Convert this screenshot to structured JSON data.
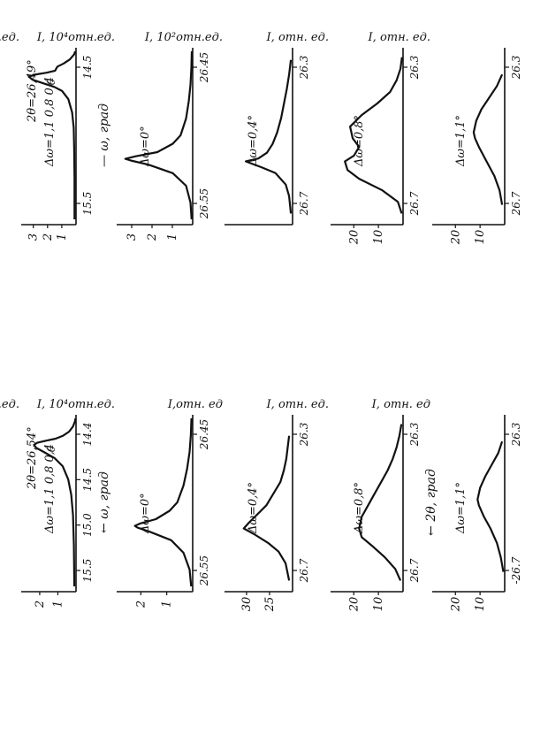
{
  "chart_data": [
    {
      "type": "line",
      "id": "p1",
      "ylabel": "I, 10⁴отн.ед.",
      "xlabel": "— ω, град",
      "annotation": "2θ=26,49°",
      "dw_label": "Δω=1,1 0,8 0,4",
      "zero_marker": "0",
      "x_ticks": [
        "15.5",
        "14.5"
      ],
      "y_ticks": [
        "3",
        "2",
        "1"
      ],
      "xlim": [
        15.9,
        14.25
      ],
      "ylim": [
        0,
        3.2
      ],
      "series": [
        {
          "x": [
            15.9,
            15.5,
            15.2,
            15.0,
            14.85,
            14.72,
            14.64,
            14.6,
            14.56,
            14.53,
            14.5,
            14.48,
            14.46,
            14.44,
            14.42,
            14.4,
            14.37,
            14.33,
            14.28,
            14.25
          ],
          "y": [
            0.1,
            0.1,
            0.12,
            0.15,
            0.25,
            0.5,
            0.9,
            1.4,
            2.2,
            2.8,
            3.05,
            2.7,
            1.9,
            1.35,
            1.28,
            1.2,
            0.8,
            0.4,
            0.12,
            0.05
          ]
        }
      ]
    },
    {
      "type": "line",
      "id": "p2",
      "ylabel": "I, 10⁴отн.ед.",
      "dw_label": "Δω=0°",
      "x_ticks": [
        "26.55",
        "26.45"
      ],
      "y_ticks": [
        "3",
        "2",
        "1"
      ],
      "xlim": [
        26.62,
        26.42
      ],
      "ylim": [
        0,
        3.2
      ],
      "series": [
        {
          "x": [
            26.62,
            26.6,
            26.58,
            26.565,
            26.555,
            26.55,
            26.548,
            26.545,
            26.54,
            26.53,
            26.52,
            26.5,
            26.48,
            26.46,
            26.44,
            26.42
          ],
          "y": [
            0.05,
            0.1,
            0.3,
            0.9,
            2.0,
            2.8,
            3.05,
            2.6,
            1.6,
            0.9,
            0.55,
            0.3,
            0.18,
            0.1,
            0.06,
            0.04
          ]
        }
      ]
    },
    {
      "type": "line",
      "id": "p3",
      "ylabel": "I, 10²отн.ед.",
      "dw_label": "Δω=0,4°",
      "x_ticks": [
        "26.7",
        "26.3"
      ],
      "y_ticks": [],
      "xlim": [
        26.8,
        26.22
      ],
      "ylim": [
        0,
        1.1
      ],
      "series": [
        {
          "x": [
            26.78,
            26.72,
            26.68,
            26.64,
            26.62,
            26.6,
            26.59,
            26.57,
            26.54,
            26.5,
            26.45,
            26.4,
            26.35,
            26.3,
            26.25
          ],
          "y": [
            0.03,
            0.06,
            0.12,
            0.3,
            0.55,
            0.82,
            0.6,
            0.45,
            0.35,
            0.27,
            0.2,
            0.15,
            0.1,
            0.06,
            0.03
          ]
        }
      ]
    },
    {
      "type": "line",
      "id": "p4",
      "ylabel": "I, отн. ед.",
      "dw_label": "Δω=0,8°",
      "x_ticks": [
        "26.7",
        "26.3"
      ],
      "y_ticks": [
        "20",
        "10"
      ],
      "xlim": [
        26.8,
        26.22
      ],
      "ylim": [
        0,
        26
      ],
      "series": [
        {
          "x": [
            26.78,
            26.74,
            26.7,
            26.66,
            26.63,
            26.6,
            26.58,
            26.55,
            26.52,
            26.48,
            26.44,
            26.4,
            26.36,
            26.32,
            26.28,
            26.24
          ],
          "y": [
            0.5,
            2,
            8,
            17,
            21.5,
            22.5,
            19,
            17,
            19.5,
            20.5,
            16,
            10,
            5,
            2.5,
            1,
            0.4
          ]
        }
      ]
    },
    {
      "type": "line",
      "id": "p5",
      "ylabel": "I, отн. ед.",
      "dw_label": "Δω=1,1°",
      "x_ticks": [
        "26.7",
        "26.3"
      ],
      "y_ticks": [
        "20",
        "10"
      ],
      "xlim": [
        26.8,
        26.22
      ],
      "ylim": [
        0,
        26
      ],
      "series": [
        {
          "x": [
            26.75,
            26.7,
            26.65,
            26.6,
            26.55,
            26.52,
            26.5,
            26.46,
            26.42,
            26.38,
            26.34,
            26.3
          ],
          "y": [
            1,
            2,
            4,
            7,
            10,
            11.5,
            12,
            11,
            9,
            6,
            3,
            1
          ]
        }
      ]
    },
    {
      "type": "line",
      "id": "p6",
      "ylabel": "I, 10⁴отн.ед.",
      "xlabel": "← ω, град",
      "annotation": "2θ=26,54°",
      "dw_label": "Δω=1,1 0,8 0,4",
      "zero_marker": "0",
      "x_ticks": [
        "15.5",
        "15.0",
        "14.5",
        "14.4"
      ],
      "y_ticks": [
        "2",
        "1"
      ],
      "xlim": [
        15.9,
        14.25
      ],
      "ylim": [
        0,
        2.3
      ],
      "series": [
        {
          "x": [
            15.9,
            15.5,
            15.2,
            15.0,
            14.85,
            14.72,
            14.64,
            14.58,
            14.54,
            14.51,
            14.49,
            14.47,
            14.45,
            14.42,
            14.38,
            14.33,
            14.28,
            14.25
          ],
          "y": [
            0.08,
            0.1,
            0.14,
            0.22,
            0.36,
            0.62,
            1.0,
            1.5,
            1.85,
            1.95,
            1.8,
            1.4,
            0.95,
            0.6,
            0.32,
            0.14,
            0.05,
            0.02
          ]
        }
      ]
    },
    {
      "type": "line",
      "id": "p7",
      "ylabel": "I, 10⁴отн.ед.",
      "dw_label": "Δω=0°",
      "x_ticks": [
        "26.55",
        "26.45"
      ],
      "y_ticks": [
        "2",
        "1"
      ],
      "xlim": [
        26.62,
        26.42
      ],
      "ylim": [
        0,
        2.3
      ],
      "series": [
        {
          "x": [
            26.62,
            26.6,
            26.58,
            26.565,
            26.555,
            26.55,
            26.548,
            26.545,
            26.54,
            26.53,
            26.52,
            26.5,
            26.48,
            26.46,
            26.44,
            26.42
          ],
          "y": [
            0.05,
            0.1,
            0.3,
            0.7,
            1.4,
            1.8,
            1.88,
            1.7,
            1.2,
            0.75,
            0.5,
            0.3,
            0.18,
            0.1,
            0.06,
            0.04
          ]
        }
      ]
    },
    {
      "type": "line",
      "id": "p8",
      "ylabel": "I,отн. ед",
      "dw_label": "Δω=0,4°",
      "x_ticks": [
        "26.7",
        "26.3"
      ],
      "y_ticks": [
        "30",
        "25"
      ],
      "xlim": [
        26.8,
        26.22
      ],
      "ylim": [
        18,
        36
      ],
      "series": [
        {
          "x": [
            26.78,
            26.72,
            26.68,
            26.65,
            26.62,
            26.6,
            26.58,
            26.55,
            26.52,
            26.48,
            26.44,
            26.4,
            26.36,
            26.32,
            26.28
          ],
          "y": [
            19,
            20,
            22,
            25,
            29,
            32,
            30.5,
            28,
            25.5,
            23.5,
            21.5,
            20.5,
            19.8,
            19.4,
            19
          ]
        }
      ]
    },
    {
      "type": "line",
      "id": "p9",
      "ylabel": "I, отн. ед.",
      "xlabel": "← 2θ, град",
      "dw_label": "Δω=0,8°",
      "x_ticks": [
        "26.7",
        "26.3"
      ],
      "y_ticks": [
        "20",
        "10"
      ],
      "xlim": [
        26.8,
        26.22
      ],
      "ylim": [
        0,
        26
      ],
      "series": [
        {
          "x": [
            26.78,
            26.74,
            26.7,
            26.66,
            26.63,
            26.6,
            26.56,
            26.52,
            26.48,
            26.44,
            26.4,
            26.36,
            26.32,
            26.28,
            26.24
          ],
          "y": [
            1,
            3,
            7,
            12,
            16,
            17,
            16,
            13.5,
            11,
            8.5,
            6,
            4,
            2.5,
            1.4,
            0.6
          ]
        }
      ]
    },
    {
      "type": "line",
      "id": "p10",
      "ylabel": "I, отн. ед",
      "dw_label": "Δω=1,1°",
      "x_ticks": [
        "-26.7",
        "26.3"
      ],
      "y_ticks": [
        "20",
        "10"
      ],
      "xlim": [
        26.8,
        26.22
      ],
      "ylim": [
        0,
        26
      ],
      "series": [
        {
          "x": [
            26.75,
            26.7,
            26.65,
            26.6,
            26.56,
            26.52,
            26.5,
            26.46,
            26.42,
            26.38,
            26.34,
            26.3
          ],
          "y": [
            0.5,
            1.5,
            3,
            5.5,
            8,
            10,
            10.5,
            9.5,
            7.5,
            5,
            2.5,
            1
          ]
        }
      ]
    }
  ],
  "shared": {
    "top_2theta_label": "— 2θ, град"
  }
}
